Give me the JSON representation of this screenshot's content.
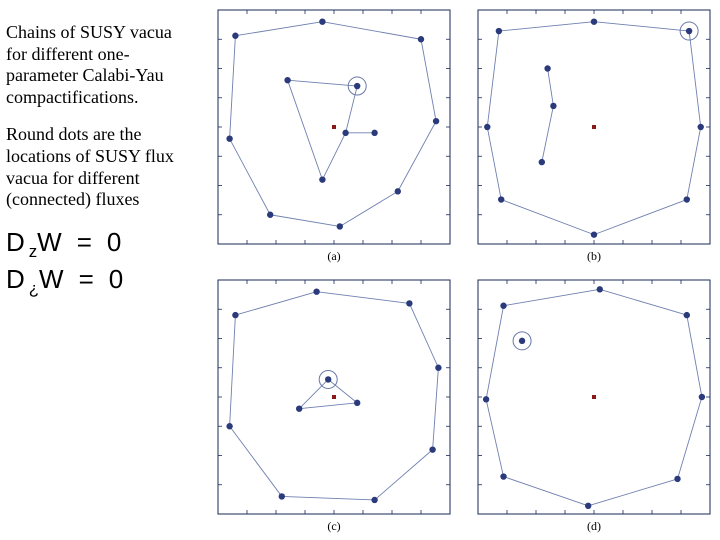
{
  "text": {
    "para1": "Chains of SUSY vacua for different one-parameter Calabi-Yau compactifications.",
    "para2": "Round dots are the locations of SUSY flux vacua for different (connected) fluxes",
    "eq1_D": "D",
    "eq1_sub": "z",
    "eq1_rest": "W = 0",
    "eq2_D": "D",
    "eq2_sub": "¿",
    "eq2_rest": "W = 0"
  },
  "labels": {
    "a": "(a)",
    "b": "(b)",
    "c": "(c)",
    "d": "(d)"
  },
  "style": {
    "axis_color": "#1a2a5a",
    "tick_color": "#1a2a5a",
    "line_color": "#7080b0",
    "dot_fill": "#2a3a7a",
    "conifold_color": "#8a1a1a",
    "circle_stroke": "#6878a8",
    "bg": "#ffffff",
    "label_color": "#000000",
    "label_fontsize": 12,
    "dot_r": 3.2,
    "conifold_size": 4,
    "circle_r": 9,
    "line_w": 0.9
  },
  "panels": {
    "a": {
      "xlim": [
        -1,
        1
      ],
      "ylim": [
        -1,
        1
      ],
      "conifold": [
        0.0,
        0.0
      ],
      "points": [
        [
          -0.85,
          0.78
        ],
        [
          -0.1,
          0.9
        ],
        [
          0.75,
          0.75
        ],
        [
          0.88,
          0.05
        ],
        [
          0.55,
          -0.55
        ],
        [
          0.05,
          -0.85
        ],
        [
          -0.55,
          -0.75
        ],
        [
          -0.9,
          -0.1
        ],
        [
          -0.4,
          0.4
        ],
        [
          0.2,
          0.35
        ],
        [
          0.1,
          -0.05
        ],
        [
          -0.1,
          -0.45
        ],
        [
          0.35,
          -0.05
        ]
      ],
      "edges": [
        [
          0,
          1
        ],
        [
          1,
          2
        ],
        [
          2,
          3
        ],
        [
          3,
          4
        ],
        [
          4,
          5
        ],
        [
          5,
          6
        ],
        [
          6,
          7
        ],
        [
          7,
          0
        ],
        [
          8,
          9
        ],
        [
          9,
          10
        ],
        [
          10,
          11
        ],
        [
          11,
          8
        ],
        [
          10,
          12
        ]
      ],
      "circled": [
        9
      ]
    },
    "b": {
      "xlim": [
        -1,
        1
      ],
      "ylim": [
        -1,
        1
      ],
      "conifold": [
        0.0,
        0.0
      ],
      "points": [
        [
          -0.82,
          0.82
        ],
        [
          0.0,
          0.9
        ],
        [
          0.82,
          0.82
        ],
        [
          0.92,
          0.0
        ],
        [
          0.8,
          -0.62
        ],
        [
          0.0,
          -0.92
        ],
        [
          -0.8,
          -0.62
        ],
        [
          -0.92,
          0.0
        ],
        [
          -0.4,
          0.5
        ],
        [
          -0.35,
          0.18
        ],
        [
          -0.45,
          -0.3
        ]
      ],
      "edges": [
        [
          0,
          1
        ],
        [
          1,
          2
        ],
        [
          2,
          3
        ],
        [
          3,
          4
        ],
        [
          4,
          5
        ],
        [
          5,
          6
        ],
        [
          6,
          7
        ],
        [
          7,
          0
        ],
        [
          8,
          9
        ],
        [
          9,
          10
        ]
      ],
      "circled": [
        2
      ]
    },
    "c": {
      "xlim": [
        -1,
        1
      ],
      "ylim": [
        -1,
        1
      ],
      "conifold": [
        0.0,
        0.0
      ],
      "points": [
        [
          -0.85,
          0.7
        ],
        [
          -0.15,
          0.9
        ],
        [
          0.65,
          0.8
        ],
        [
          0.9,
          0.25
        ],
        [
          0.85,
          -0.45
        ],
        [
          0.35,
          -0.88
        ],
        [
          -0.45,
          -0.85
        ],
        [
          -0.9,
          -0.25
        ],
        [
          -0.05,
          0.15
        ],
        [
          0.2,
          -0.05
        ],
        [
          -0.3,
          -0.1
        ]
      ],
      "edges": [
        [
          0,
          1
        ],
        [
          1,
          2
        ],
        [
          2,
          3
        ],
        [
          3,
          4
        ],
        [
          4,
          5
        ],
        [
          5,
          6
        ],
        [
          6,
          7
        ],
        [
          7,
          0
        ],
        [
          8,
          9
        ],
        [
          9,
          10
        ],
        [
          10,
          8
        ]
      ],
      "circled": [
        8
      ]
    },
    "d": {
      "xlim": [
        -1,
        1
      ],
      "ylim": [
        -1,
        1
      ],
      "conifold": [
        0.0,
        0.0
      ],
      "points": [
        [
          -0.78,
          0.78
        ],
        [
          0.05,
          0.92
        ],
        [
          0.8,
          0.7
        ],
        [
          0.93,
          0.0
        ],
        [
          0.72,
          -0.7
        ],
        [
          -0.05,
          -0.93
        ],
        [
          -0.78,
          -0.68
        ],
        [
          -0.93,
          -0.02
        ],
        [
          -0.62,
          0.48
        ]
      ],
      "edges": [
        [
          0,
          1
        ],
        [
          1,
          2
        ],
        [
          2,
          3
        ],
        [
          3,
          4
        ],
        [
          4,
          5
        ],
        [
          5,
          6
        ],
        [
          6,
          7
        ],
        [
          7,
          0
        ]
      ],
      "circled": [
        8
      ]
    }
  }
}
